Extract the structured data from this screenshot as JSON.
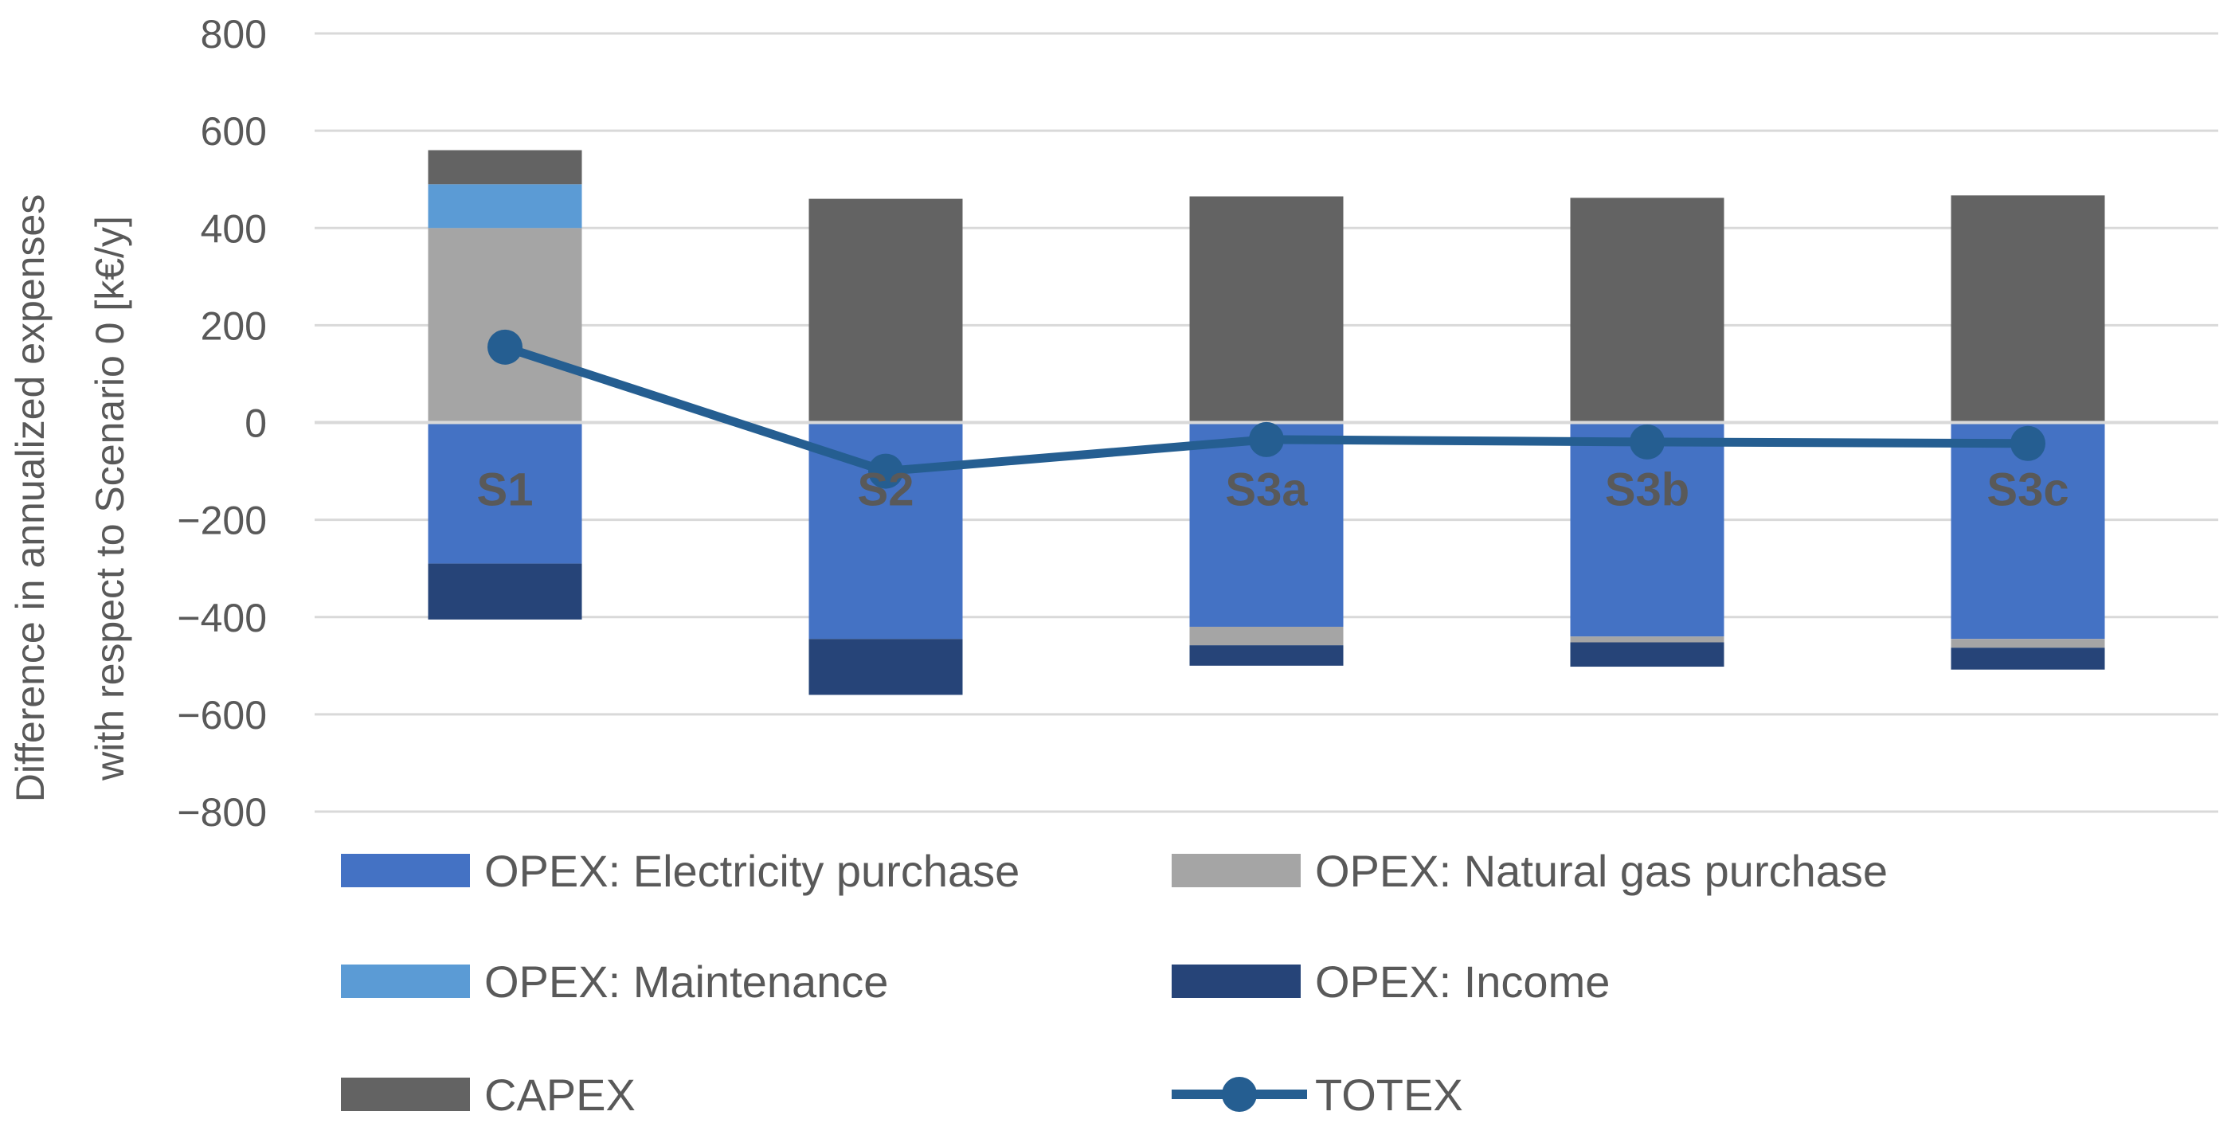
{
  "chart_data": {
    "type": "bar",
    "stacked": true,
    "title": "",
    "xlabel": "",
    "ylabel_lines": [
      "Difference in annualized expenses",
      "with respect to Scenario 0 [k€/y]"
    ],
    "ylim": [
      -800,
      800
    ],
    "yticks": [
      800,
      600,
      400,
      200,
      0,
      -200,
      -400,
      -600,
      -800
    ],
    "ytick_labels": [
      "800",
      "600",
      "400",
      "200",
      "0",
      "−200",
      "−400",
      "−600",
      "−800"
    ],
    "grid": true,
    "legend_position": "bottom",
    "categories": [
      "S1",
      "S2",
      "S3a",
      "S3b",
      "S3c"
    ],
    "series": [
      {
        "name": "OPEX: Electricity purchase",
        "kind": "bar",
        "color": "#4472C4",
        "values": [
          -290,
          -445,
          -420,
          -440,
          -445
        ]
      },
      {
        "name": "OPEX: Natural gas purchase",
        "kind": "bar",
        "color": "#A5A5A5",
        "values": [
          400,
          0,
          -38,
          -12,
          -18
        ]
      },
      {
        "name": "OPEX: Maintenance",
        "kind": "bar",
        "color": "#5B9BD5",
        "values": [
          90,
          0,
          0,
          0,
          0
        ]
      },
      {
        "name": "OPEX: Income",
        "kind": "bar",
        "color": "#264478",
        "values": [
          -115,
          -115,
          -42,
          -50,
          -45
        ]
      },
      {
        "name": "CAPEX",
        "kind": "bar",
        "color": "#636363",
        "values": [
          70,
          460,
          465,
          462,
          467
        ]
      },
      {
        "name": "TOTEX",
        "kind": "line",
        "color": "#255E91",
        "values": [
          155,
          -100,
          -35,
          -40,
          -43
        ]
      }
    ]
  }
}
